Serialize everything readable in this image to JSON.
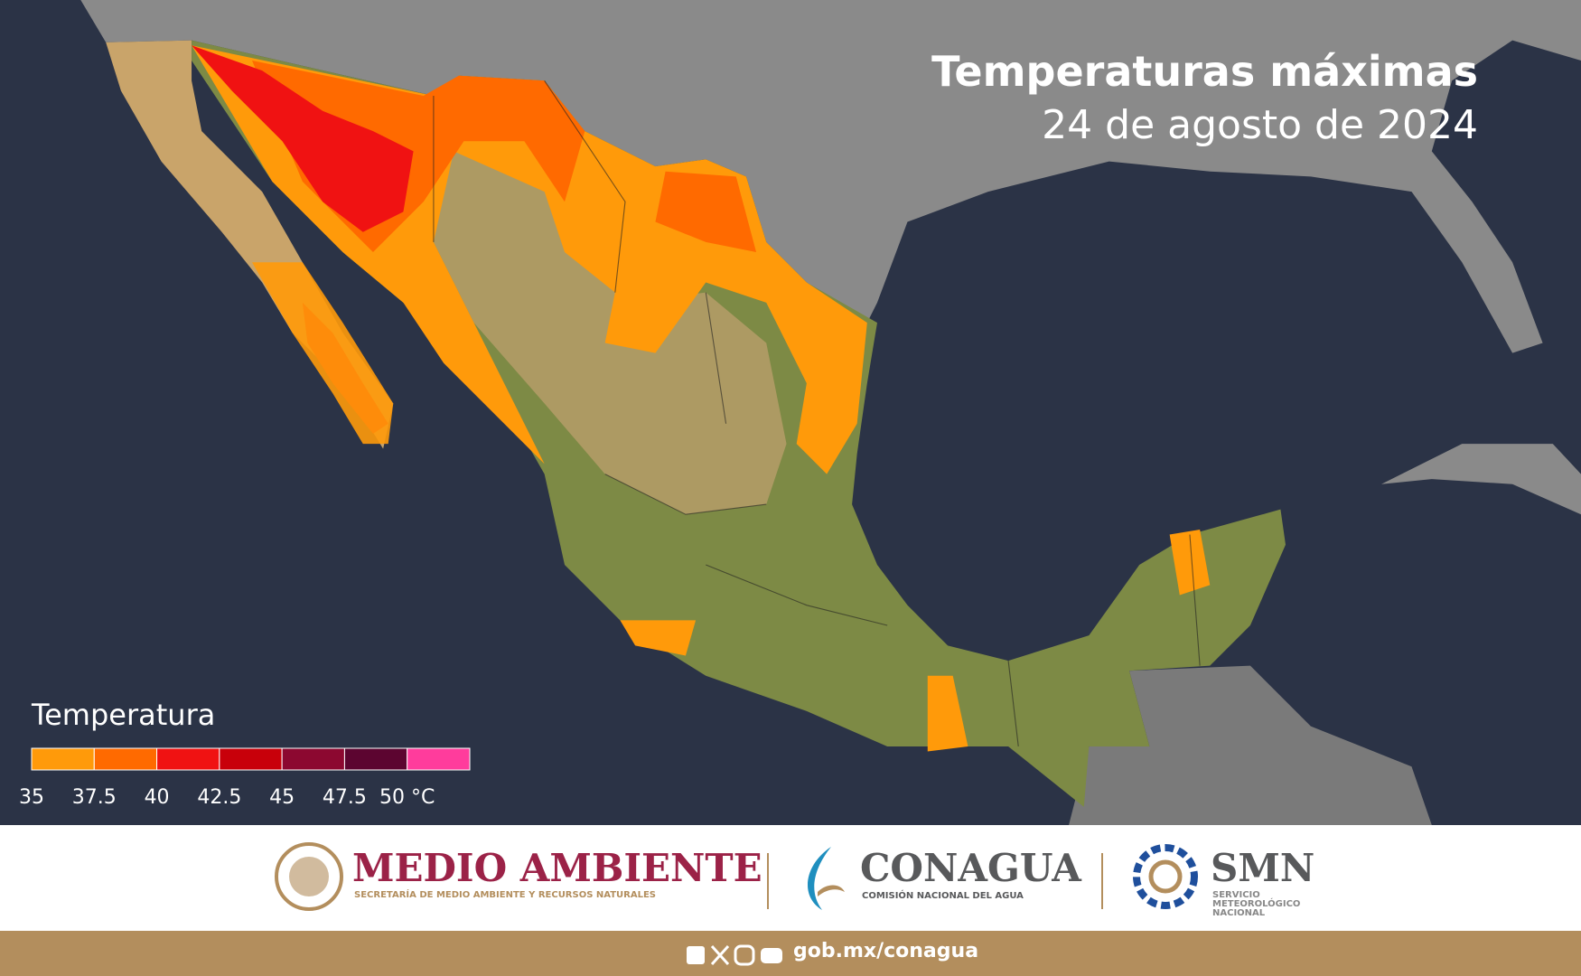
{
  "header": {
    "title": "Temperaturas máximas",
    "date": "24 de agosto de 2024"
  },
  "legend": {
    "title": "Temperatura",
    "colors": [
      "#ff9a0a",
      "#ff6a00",
      "#f01212",
      "#c8000a",
      "#8c0830",
      "#5c0530",
      "#ff3c9c"
    ],
    "labels": [
      "35",
      "37.5",
      "40",
      "42.5",
      "45",
      "47.5",
      "50 °C"
    ]
  },
  "logos": {
    "semarnat": {
      "name": "MEDIO AMBIENTE",
      "subtitle": "SECRETARÍA DE MEDIO AMBIENTE Y RECURSOS NATURALES"
    },
    "conagua": {
      "name": "CONAGUA",
      "subtitle": "COMISIÓN NACIONAL DEL AGUA"
    },
    "smn": {
      "name": "SMN",
      "subtitle": [
        "SERVICIO",
        "METEOROLÓGICO",
        "NACIONAL"
      ]
    }
  },
  "footer": {
    "url": "gob.mx/conagua"
  }
}
